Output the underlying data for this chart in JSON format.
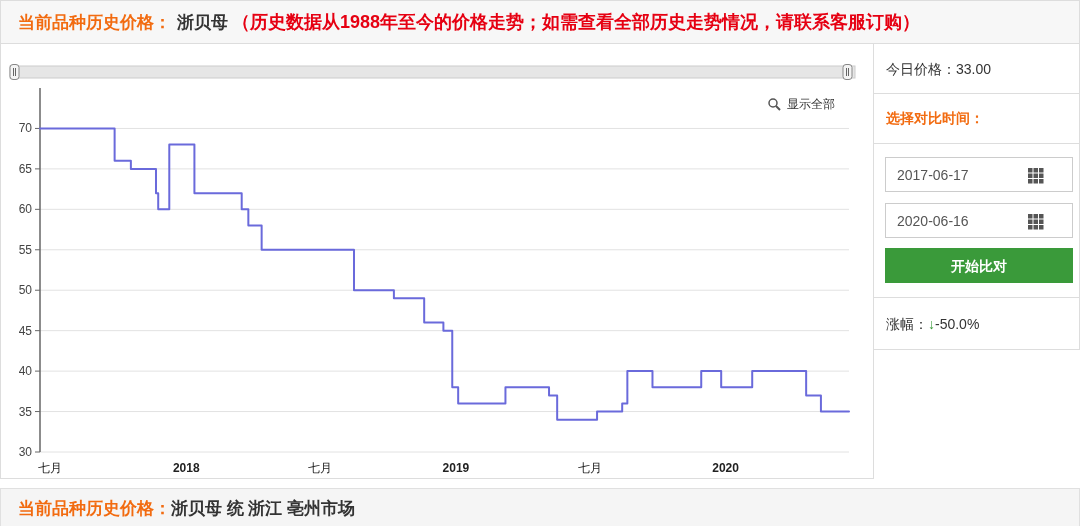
{
  "chart_data": {
    "type": "step",
    "title": "当前品种历史价格：",
    "subtitle": "浙贝母",
    "x": [
      "2017-06-17",
      "2017-09-26",
      "2017-10-18",
      "2017-11-21",
      "2017-11-24",
      "2017-12-09",
      "2018-01-12",
      "2018-03-17",
      "2018-03-26",
      "2018-04-13",
      "2018-08-16",
      "2018-10-09",
      "2018-11-19",
      "2018-12-15",
      "2018-12-27",
      "2019-01-04",
      "2019-03-09",
      "2019-05-07",
      "2019-05-18",
      "2019-07-11",
      "2019-08-14",
      "2019-08-21",
      "2019-09-24",
      "2019-11-29",
      "2019-12-26",
      "2020-02-06",
      "2020-04-19",
      "2020-05-09",
      "2020-06-16"
    ],
    "values": [
      70,
      66,
      65,
      62,
      60,
      68,
      62,
      60,
      58,
      55,
      50,
      49,
      46,
      45,
      38,
      36,
      38,
      37,
      34,
      35,
      36,
      40,
      38,
      40,
      38,
      40,
      37,
      35,
      35
    ],
    "color": "#6a6adb",
    "xlim": [
      "2017-06-17",
      "2020-06-16"
    ],
    "xticks": [
      {
        "value": "2017-07-01",
        "label": "七月"
      },
      {
        "value": "2018-01-01",
        "label": "2018"
      },
      {
        "value": "2018-07-01",
        "label": "七月"
      },
      {
        "value": "2019-01-01",
        "label": "2019"
      },
      {
        "value": "2019-07-01",
        "label": "七月"
      },
      {
        "value": "2020-01-01",
        "label": "2020"
      }
    ],
    "ylim": [
      30,
      75
    ],
    "yticks": [
      30,
      35,
      40,
      45,
      50,
      55,
      60,
      65,
      70
    ],
    "grid": "y",
    "annotations": [
      "（历史数据从1988年至今的价格走势；如需查看全部历史走势情况，请联系客服订购）",
      "显示全部",
      "今日价格：33.00",
      "选择对比时间：",
      "2017-06-17",
      "2020-06-16",
      "开始比对",
      "涨幅：",
      "↓",
      "-50.0%",
      "当前品种历史价格：",
      "浙贝母 统 浙江 亳州市场"
    ]
  }
}
